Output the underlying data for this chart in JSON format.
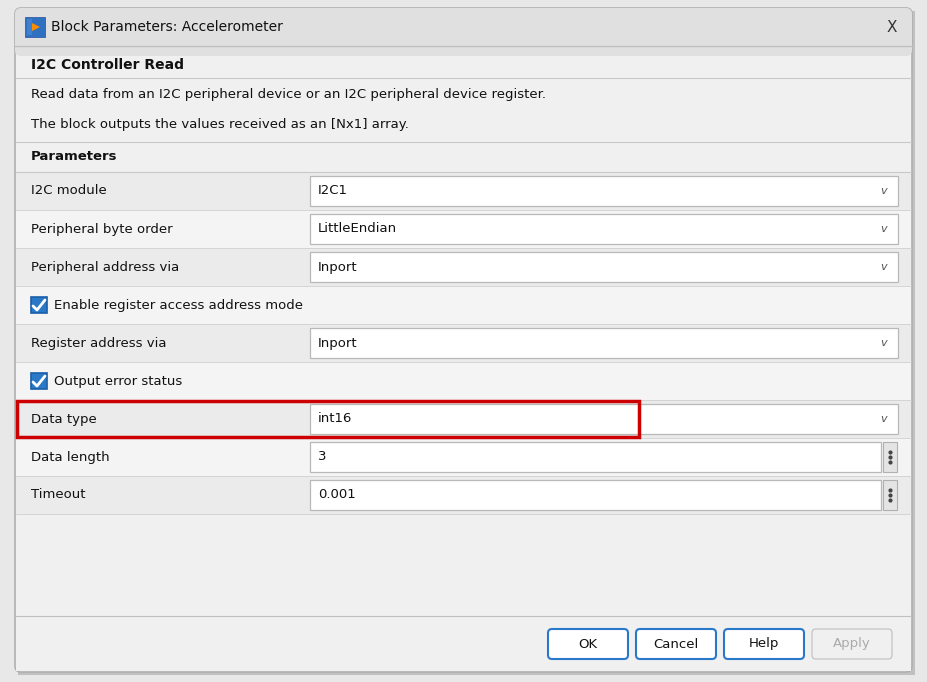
{
  "title_text": "Block Parameters: Accelerometer",
  "bg_color": "#e8e8e8",
  "dialog_bg": "#f0f0f0",
  "content_bg": "#f0f0f0",
  "white": "#ffffff",
  "border_color": "#b0b0b0",
  "header_bg": "#e0e0e0",
  "blue_check": "#2979c8",
  "red_border": "#cc0000",
  "subtitle1": "I2C Controller Read",
  "desc1": "Read data from an I2C peripheral device or an I2C peripheral device register.",
  "desc2": "The block outputs the values received as an [Nx1] array.",
  "section": "Parameters",
  "rows": [
    {
      "label": "I2C module",
      "value": "I2C1",
      "type": "dropdown",
      "highlight": false
    },
    {
      "label": "Peripheral byte order",
      "value": "LittleEndian",
      "type": "dropdown",
      "highlight": false
    },
    {
      "label": "Peripheral address via",
      "value": "Inport",
      "type": "dropdown",
      "highlight": false
    },
    {
      "label": "Enable register access address mode",
      "value": "",
      "type": "checkbox",
      "highlight": false
    },
    {
      "label": "Register address via",
      "value": "Inport",
      "type": "dropdown",
      "highlight": false
    },
    {
      "label": "Output error status",
      "value": "",
      "type": "checkbox",
      "highlight": false
    },
    {
      "label": "Data type",
      "value": "int16",
      "type": "dropdown_highlight",
      "highlight": true
    },
    {
      "label": "Data length",
      "value": "3",
      "type": "spinbox",
      "highlight": false
    },
    {
      "label": "Timeout",
      "value": "0.001",
      "type": "spinbox",
      "highlight": false
    }
  ],
  "buttons": [
    "OK",
    "Cancel",
    "Help",
    "Apply"
  ],
  "button_active": [
    true,
    true,
    true,
    false
  ]
}
